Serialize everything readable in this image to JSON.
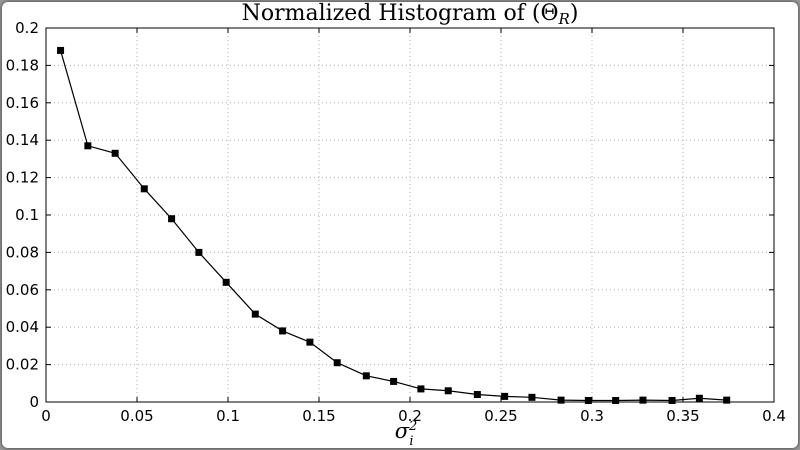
{
  "figure": {
    "background": "#ffffff",
    "frame_background": "#9a9a9a"
  },
  "chart_data": {
    "type": "line",
    "title": "Normalized Histogram of (Θ_R)",
    "title_parts": {
      "prefix": "Normalized Histogram of (Θ",
      "subscript": "R",
      "suffix": ")"
    },
    "xlabel": "σ_i^2",
    "xlabel_parts": {
      "base": "σ",
      "sup": "2",
      "sub": "i"
    },
    "ylabel": "",
    "xlim": [
      0,
      0.4
    ],
    "ylim": [
      0,
      0.2
    ],
    "xticks": [
      0,
      0.05,
      0.1,
      0.15,
      0.2,
      0.25,
      0.3,
      0.35,
      0.4
    ],
    "xtick_labels": [
      "0",
      "0.05",
      "0.1",
      "0.15",
      "0.2",
      "0.25",
      "0.3",
      "0.35",
      "0.4"
    ],
    "yticks": [
      0,
      0.02,
      0.04,
      0.06,
      0.08,
      0.1,
      0.12,
      0.14,
      0.16,
      0.18,
      0.2
    ],
    "ytick_labels": [
      "0",
      "0.02",
      "0.04",
      "0.06",
      "0.08",
      "0.1",
      "0.12",
      "0.14",
      "0.16",
      "0.18",
      "0.2"
    ],
    "grid": "dotted",
    "grid_color": "#b3b3b3",
    "axis_color": "#000000",
    "line_color": "#000000",
    "marker": "square",
    "marker_color": "#000000",
    "marker_size": 7,
    "legend": "none",
    "x": [
      0.008,
      0.023,
      0.038,
      0.054,
      0.069,
      0.084,
      0.099,
      0.115,
      0.13,
      0.145,
      0.16,
      0.176,
      0.191,
      0.206,
      0.221,
      0.237,
      0.252,
      0.267,
      0.283,
      0.298,
      0.313,
      0.328,
      0.344,
      0.359,
      0.374
    ],
    "y": [
      0.188,
      0.137,
      0.133,
      0.114,
      0.098,
      0.08,
      0.064,
      0.047,
      0.038,
      0.032,
      0.021,
      0.014,
      0.011,
      0.007,
      0.006,
      0.004,
      0.003,
      0.0025,
      0.001,
      0.0008,
      0.0008,
      0.001,
      0.0008,
      0.002,
      0.001
    ]
  }
}
